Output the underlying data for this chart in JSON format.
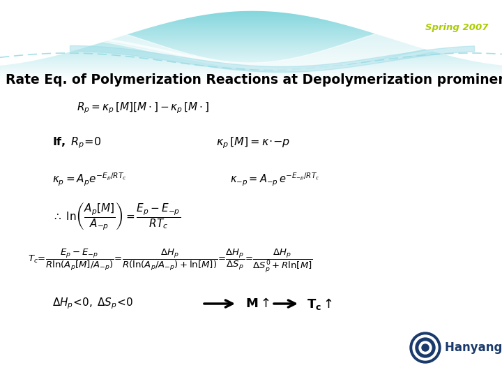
{
  "background_top_color": "#70d0d8",
  "spring_text": "Spring 2007",
  "spring_color": "#aacc00",
  "title": "Rate Eq. of Polymerization Reactions at Depolymerization prominent Te",
  "title_color": "#000000",
  "title_fontsize": 13.5,
  "hanyang_text": "Hanyang Univ.",
  "hanyang_color": "#1a3a6b",
  "logo_color": "#1a3a6b",
  "wave1_color": "#ffffff",
  "wave2_color": "#b0e8ec",
  "wave3_color": "#d0f0f4"
}
